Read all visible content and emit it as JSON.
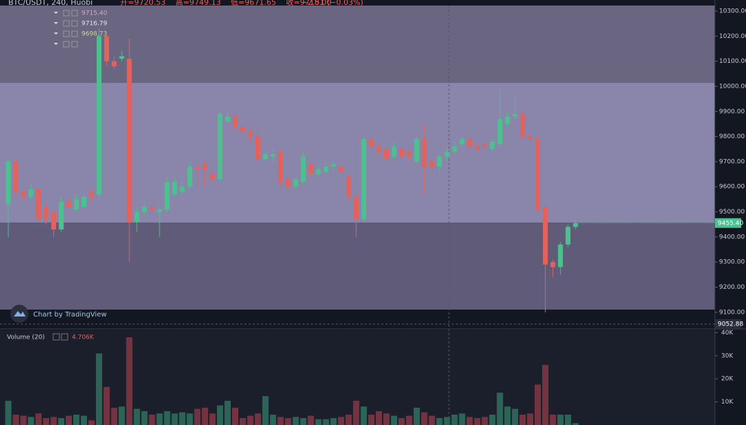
{
  "chart_data": {
    "type": "candlestick",
    "title": "BTC/USDT, 240, Huobi",
    "ohlc_labels": [
      "开=9720.53",
      "高=9749.13",
      "低=9671.65",
      "收=9718.00"
    ],
    "change_label": "−2.51 (−0.03%)",
    "indicator_values": [
      {
        "text": "9715.40",
        "color": "#d9a3c8"
      },
      {
        "text": "9716.79",
        "color": "#dfe6f5"
      },
      {
        "text": "9698.73",
        "color": "#c7d98a"
      }
    ],
    "watermark": "Chart by TradingView",
    "volume_title": "Volume (20)",
    "volume_value": "4.706K",
    "up_color": "#4cc08e",
    "down_color": "#e2625e",
    "volume_up_color": "#2c6558",
    "volume_down_color": "#743341",
    "open": [
      9530,
      9700,
      9580,
      9560,
      9590,
      9520,
      9500,
      9430,
      9540,
      9510,
      9520,
      9580,
      9570,
      10200,
      10100,
      10110,
      10110,
      9460,
      9500,
      9520,
      9500,
      9510,
      9570,
      9580,
      9600,
      9680,
      9690,
      9650,
      9630,
      9860,
      9880,
      9840,
      9820,
      9800,
      9710,
      9720,
      9740,
      9630,
      9600,
      9620,
      9690,
      9650,
      9660,
      9680,
      9680,
      9640,
      9560,
      9470,
      9790,
      9760,
      9750,
      9720,
      9750,
      9740,
      9700,
      9790,
      9700,
      9680,
      9720,
      9740,
      9770,
      9790,
      9760,
      9770,
      9750,
      9770,
      9850,
      9880,
      9890,
      9800,
      9790,
      9520,
      9300,
      9280,
      9370,
      9440
    ],
    "high": [
      9710,
      9710,
      9600,
      9610,
      9600,
      9530,
      9510,
      9560,
      9550,
      9570,
      9570,
      9590,
      10230,
      10210,
      10120,
      10140,
      10190,
      9520,
      9540,
      9530,
      9520,
      9640,
      9640,
      9620,
      9700,
      9700,
      9700,
      9670,
      9900,
      9900,
      9890,
      9850,
      9830,
      9830,
      9740,
      9750,
      9750,
      9650,
      9640,
      9740,
      9700,
      9680,
      9700,
      9700,
      9690,
      9650,
      9570,
      9800,
      9800,
      9770,
      9760,
      9780,
      9760,
      9750,
      9800,
      9850,
      9720,
      9730,
      9760,
      9780,
      9800,
      9800,
      9780,
      9780,
      9790,
      9990,
      9900,
      9960,
      9900,
      9820,
      9800,
      9530,
      9310,
      9380,
      9450,
      9470
    ],
    "low": [
      9400,
      9560,
      9540,
      9550,
      9460,
      9450,
      9400,
      9420,
      9500,
      9500,
      9510,
      9540,
      9550,
      10080,
      10070,
      10100,
      9300,
      9420,
      9480,
      9500,
      9400,
      9500,
      9560,
      9570,
      9590,
      9600,
      9600,
      9550,
      9620,
      9850,
      9820,
      9800,
      9780,
      9700,
      9700,
      9700,
      9600,
      9580,
      9590,
      9610,
      9640,
      9640,
      9650,
      9670,
      9650,
      9550,
      9400,
      9460,
      9740,
      9720,
      9700,
      9710,
      9710,
      9700,
      9690,
      9570,
      9660,
      9660,
      9700,
      9730,
      9760,
      9750,
      9740,
      9740,
      9740,
      9760,
      9840,
      9870,
      9790,
      9770,
      9500,
      9100,
      9240,
      9250,
      9360,
      9430
    ],
    "close": [
      9700,
      9580,
      9560,
      9590,
      9470,
      9470,
      9430,
      9540,
      9520,
      9550,
      9560,
      9560,
      10200,
      10100,
      10080,
      10120,
      9460,
      9500,
      9520,
      9510,
      9510,
      9620,
      9620,
      9600,
      9680,
      9670,
      9670,
      9630,
      9890,
      9880,
      9840,
      9820,
      9800,
      9710,
      9730,
      9730,
      9620,
      9600,
      9630,
      9720,
      9650,
      9670,
      9680,
      9690,
      9660,
      9560,
      9470,
      9790,
      9760,
      9740,
      9710,
      9760,
      9720,
      9720,
      9790,
      9680,
      9680,
      9720,
      9740,
      9760,
      9790,
      9760,
      9750,
      9760,
      9780,
      9870,
      9880,
      9890,
      9800,
      9790,
      9510,
      9290,
      9280,
      9370,
      9440,
      9455.4
    ],
    "volume": [
      10500,
      4500,
      4000,
      3500,
      5000,
      3000,
      3500,
      3000,
      4000,
      4500,
      4000,
      2000,
      31000,
      16500,
      7500,
      8000,
      38000,
      7000,
      6000,
      4500,
      5000,
      6000,
      5000,
      5500,
      5000,
      7000,
      7500,
      5000,
      8500,
      10500,
      7500,
      3000,
      4000,
      5000,
      12500,
      4500,
      3500,
      3000,
      3500,
      3000,
      4000,
      2500,
      2500,
      3000,
      3500,
      4500,
      10500,
      8000,
      4500,
      6000,
      5000,
      4000,
      3000,
      4000,
      7500,
      5500,
      4000,
      3000,
      3500,
      4500,
      5000,
      3500,
      3000,
      3500,
      4500,
      14000,
      8000,
      7000,
      4500,
      5000,
      17500,
      26000,
      4500,
      4500,
      4500,
      800
    ],
    "ylim": [
      9039,
      10322
    ],
    "yticks": [
      {
        "value": 9100,
        "label": "9100.00"
      },
      {
        "value": 9200,
        "label": "9200.00"
      },
      {
        "value": 9300,
        "label": "9300.00"
      },
      {
        "value": 9400,
        "label": "9400.00"
      },
      {
        "value": 9500,
        "label": "9500.00"
      },
      {
        "value": 9600,
        "label": "9600.00"
      },
      {
        "value": 9700,
        "label": "9700.00"
      },
      {
        "value": 9800,
        "label": "9800.00"
      },
      {
        "value": 9900,
        "label": "9900.00"
      },
      {
        "value": 10000,
        "label": "10000.00"
      },
      {
        "value": 10100,
        "label": "10100.00"
      },
      {
        "value": 10200,
        "label": "10200.00"
      },
      {
        "value": 10300,
        "label": "10300.00"
      }
    ],
    "last_price": {
      "value": 9455.4,
      "label": "9455.40"
    },
    "crosshair_price": {
      "value": 9052.88,
      "label": "9052.88"
    },
    "volume_ylim": [
      0,
      41000
    ],
    "volume_yticks": [
      {
        "value": 10000,
        "label": "10K"
      },
      {
        "value": 20000,
        "label": "20K"
      },
      {
        "value": 30000,
        "label": "30K"
      },
      {
        "value": 40000,
        "label": "40K"
      }
    ]
  }
}
